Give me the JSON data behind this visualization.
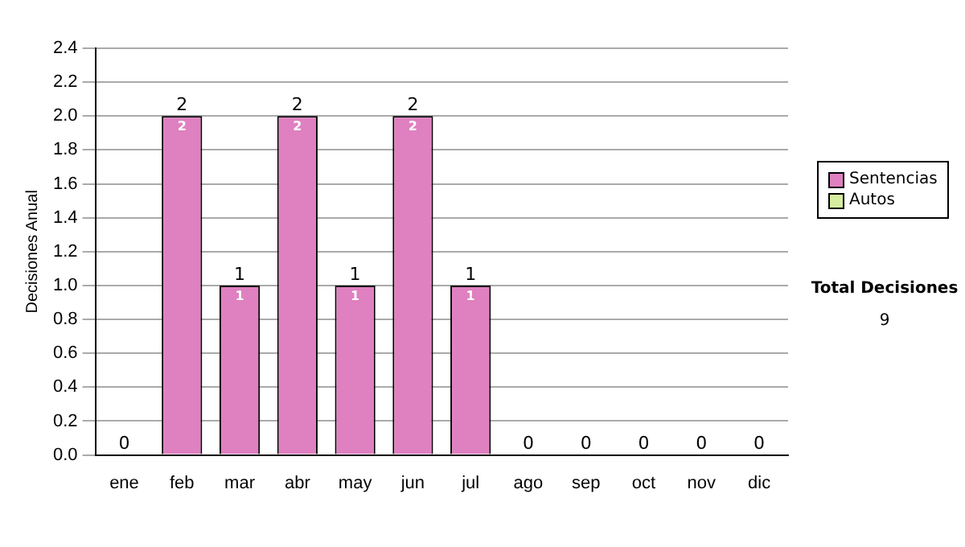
{
  "chart_data": {
    "type": "bar",
    "stacked": true,
    "ylabel": "Decisiones Anual",
    "categories": [
      "ene",
      "feb",
      "mar",
      "abr",
      "may",
      "jun",
      "jul",
      "ago",
      "sep",
      "oct",
      "nov",
      "dic"
    ],
    "series": [
      {
        "name": "Sentencias",
        "color": "#df80c0",
        "values": [
          0,
          2,
          1,
          2,
          1,
          2,
          1,
          0,
          0,
          0,
          0,
          0
        ],
        "value_labels": [
          null,
          "2",
          "1",
          "2",
          "1",
          "2",
          "1",
          null,
          null,
          null,
          null,
          null
        ]
      },
      {
        "name": "Autos",
        "color": "#d6eda0",
        "values": [
          0,
          0,
          0,
          0,
          0,
          0,
          0,
          0,
          0,
          0,
          0,
          0
        ]
      }
    ],
    "totals": [
      "0",
      "2",
      "1",
      "2",
      "1",
      "2",
      "1",
      "0",
      "0",
      "0",
      "0",
      "0"
    ],
    "ylim": [
      0,
      2.4
    ],
    "yticks": [
      "0.0",
      "0.2",
      "0.4",
      "0.6",
      "0.8",
      "1.0",
      "1.2",
      "1.4",
      "1.6",
      "1.8",
      "2.0",
      "2.2",
      "2.4"
    ],
    "grid": "y",
    "legend": "right",
    "annotations": [
      "Total Decisiones",
      "9"
    ]
  }
}
